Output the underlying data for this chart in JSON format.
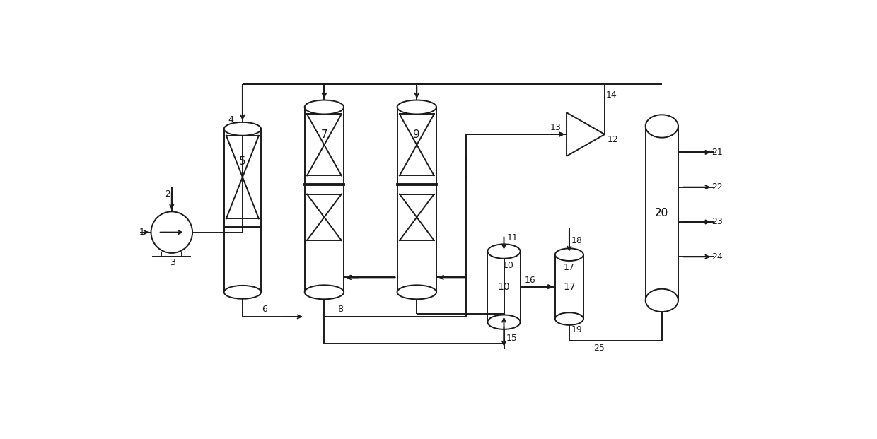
{
  "bg_color": "#ffffff",
  "lc": "#1a1a1a",
  "lw": 1.4,
  "figsize": [
    12.4,
    6.21
  ],
  "dpi": 100
}
